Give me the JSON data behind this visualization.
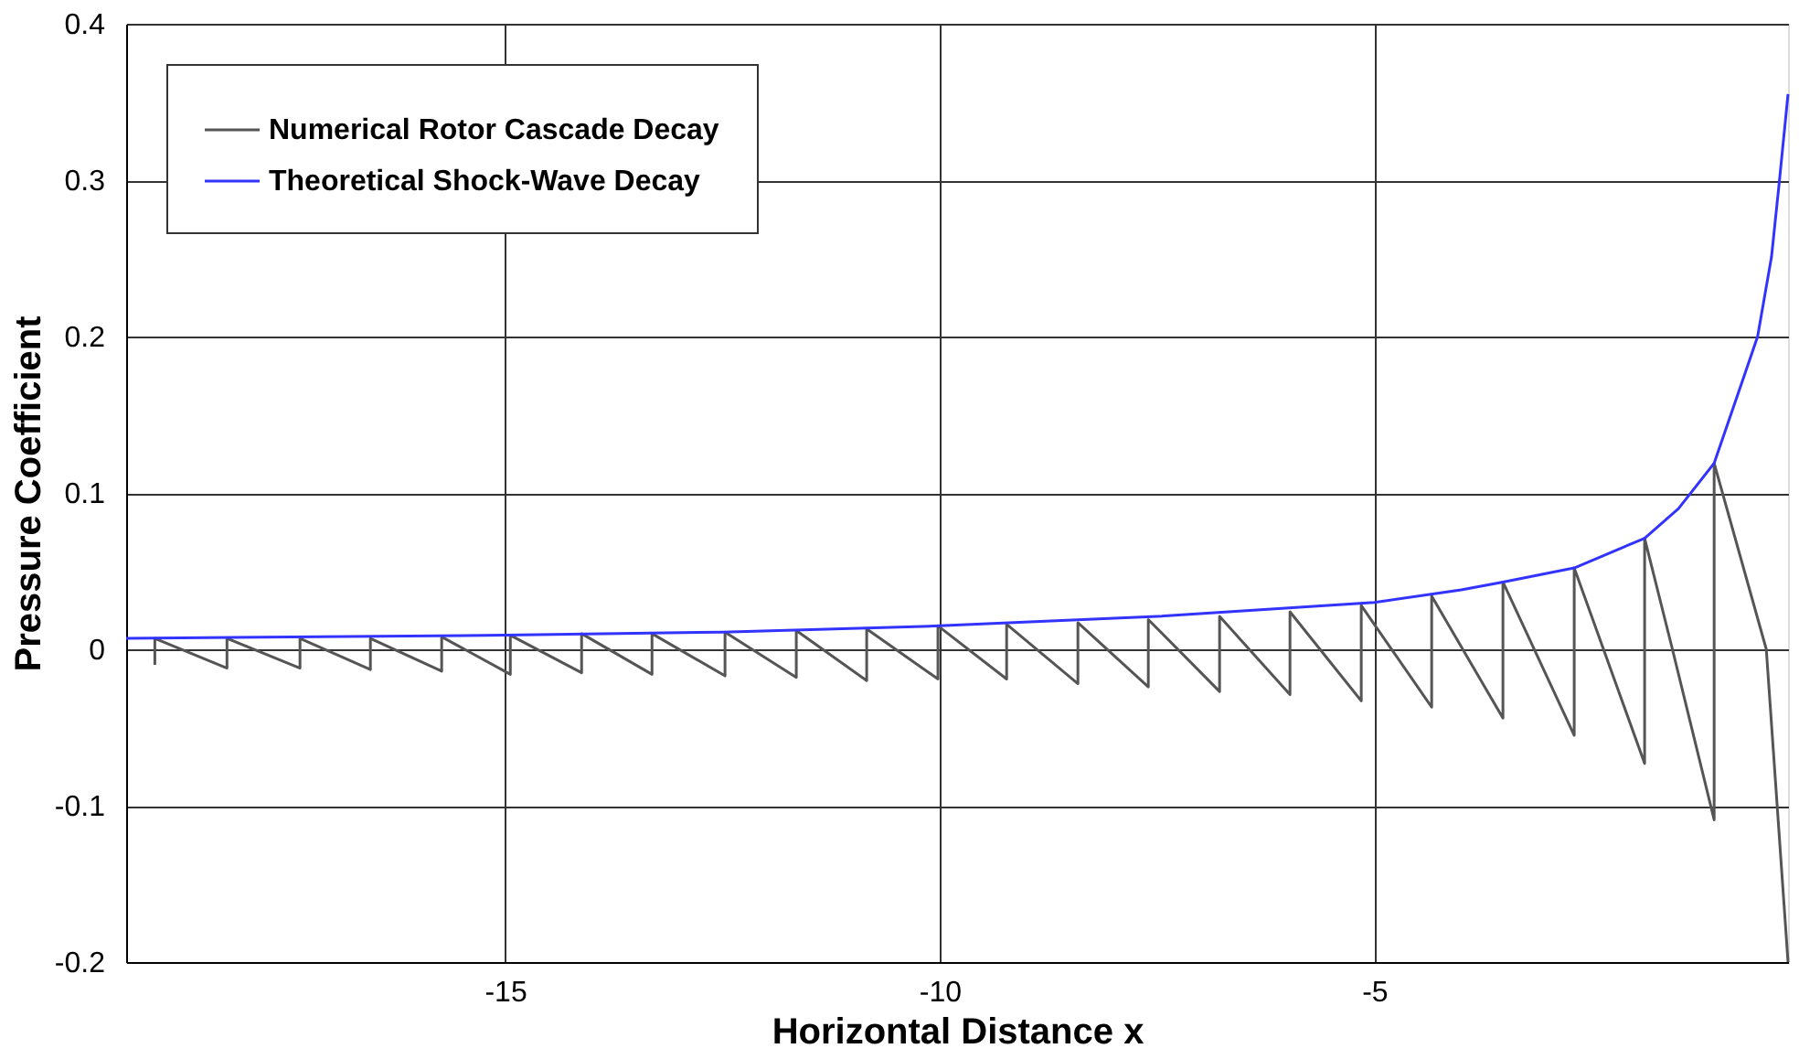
{
  "chart_data": {
    "type": "line",
    "xlabel": "Horizontal Distance x",
    "ylabel": "Pressure Coefficient",
    "xlim": [
      -19.36,
      -0.24
    ],
    "xticks": [
      -15,
      -10,
      -5
    ],
    "ylim": [
      -0.2,
      0.4
    ],
    "yticks": [
      -0.2,
      -0.1,
      0,
      0.1,
      0.2,
      0.3,
      0.4
    ],
    "grid": true,
    "legend": "top left",
    "line_style": "solid",
    "marker": "none",
    "series": [
      {
        "name": "Numerical Rotor Cascade Decay",
        "color": "#555555",
        "x": [
          -19.03,
          -19.03,
          -18.2,
          -18.2,
          -17.36,
          -17.36,
          -16.55,
          -16.55,
          -15.73,
          -15.73,
          -14.94,
          -14.94,
          -14.12,
          -14.12,
          -13.31,
          -13.31,
          -12.47,
          -12.47,
          -11.65,
          -11.65,
          -10.84,
          -10.84,
          -10.02,
          -10.02,
          -9.23,
          -9.23,
          -8.41,
          -8.41,
          -7.6,
          -7.6,
          -6.78,
          -6.78,
          -5.97,
          -5.97,
          -5.15,
          -5.15,
          -4.34,
          -4.34,
          -3.52,
          -3.52,
          -2.7,
          -2.7,
          -1.89,
          -1.89,
          -1.57,
          -1.09,
          -1.09,
          -0.49,
          -0.24
        ],
        "values": [
          -0.01,
          0.007,
          -0.012,
          0.007,
          -0.012,
          0.007,
          -0.013,
          0.007,
          -0.014,
          0.008,
          -0.016,
          0.009,
          -0.015,
          0.01,
          -0.016,
          0.01,
          -0.017,
          0.011,
          -0.018,
          0.012,
          -0.02,
          0.013,
          -0.019,
          0.015,
          -0.019,
          0.016,
          -0.022,
          0.017,
          -0.024,
          0.019,
          -0.027,
          0.021,
          -0.029,
          0.024,
          -0.033,
          0.028,
          -0.037,
          0.034,
          -0.044,
          0.043,
          -0.055,
          0.052,
          -0.073,
          0.071,
          0,
          -0.109,
          0.119,
          0,
          -0.2
        ]
      },
      {
        "name": "Theoretical Shock-Wave Decay",
        "color": "#3333ff",
        "x": [
          -19.36,
          -15,
          -12.5,
          -10,
          -7.5,
          -5,
          -4,
          -3.52,
          -2.7,
          -1.89,
          -1.5,
          -1.09,
          -0.75,
          -0.59,
          -0.43,
          -0.34,
          -0.24
        ],
        "values": [
          0.007,
          0.009,
          0.011,
          0.015,
          0.021,
          0.03,
          0.038,
          0.043,
          0.052,
          0.071,
          0.09,
          0.119,
          0.174,
          0.2,
          0.251,
          0.299,
          0.355
        ]
      }
    ]
  }
}
